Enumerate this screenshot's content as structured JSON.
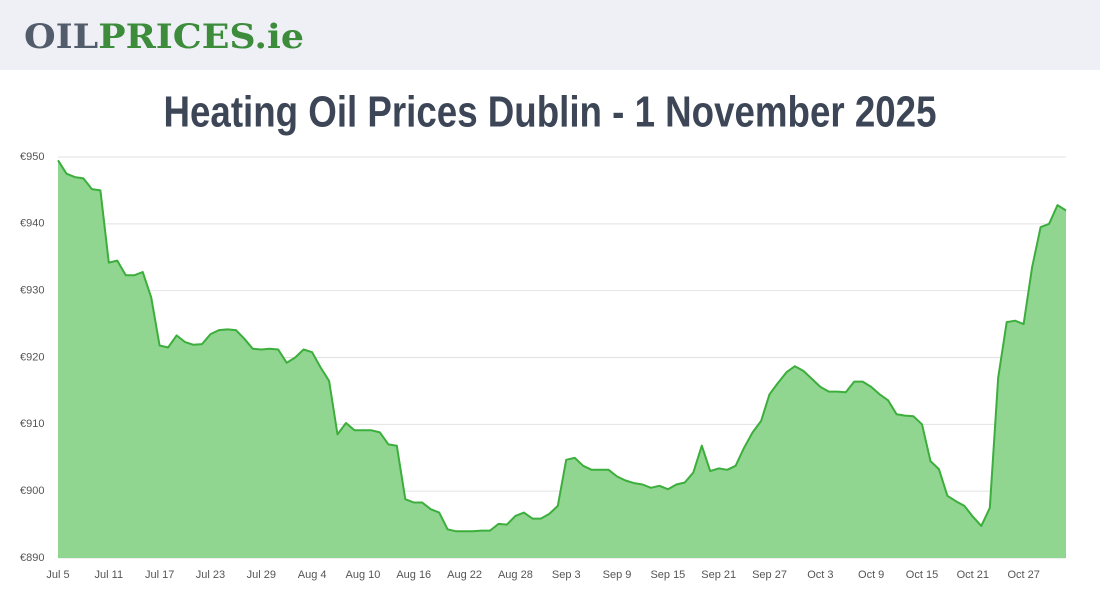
{
  "header": {
    "logo_parts": [
      "OIL",
      "PRICES",
      ".ie"
    ]
  },
  "chart_data": {
    "type": "area",
    "title": "Heating Oil Prices Dublin - 1 November 2025",
    "categories": [
      "Jul 5",
      null,
      null,
      null,
      null,
      null,
      "Jul 11",
      null,
      null,
      null,
      null,
      null,
      "Jul 17",
      null,
      null,
      null,
      null,
      null,
      "Jul 23",
      null,
      null,
      null,
      null,
      null,
      "Jul 29",
      null,
      null,
      null,
      null,
      null,
      "Aug 4",
      null,
      null,
      null,
      null,
      null,
      "Aug 10",
      null,
      null,
      null,
      null,
      null,
      "Aug 16",
      null,
      null,
      null,
      null,
      null,
      "Aug 22",
      null,
      null,
      null,
      null,
      null,
      "Aug 28",
      null,
      null,
      null,
      null,
      null,
      "Sep 3",
      null,
      null,
      null,
      null,
      null,
      "Sep 9",
      null,
      null,
      null,
      null,
      null,
      "Sep 15",
      null,
      null,
      null,
      null,
      null,
      "Sep 21",
      null,
      null,
      null,
      null,
      null,
      "Sep 27",
      null,
      null,
      null,
      null,
      null,
      "Oct 3",
      null,
      null,
      null,
      null,
      null,
      "Oct 9",
      null,
      null,
      null,
      null,
      null,
      "Oct 15",
      null,
      null,
      null,
      null,
      null,
      "Oct 21",
      null,
      null,
      null,
      null,
      null,
      "Oct 27",
      null,
      null,
      null,
      null,
      null
    ],
    "values": [
      949.5,
      947.5,
      947,
      946.8,
      945.2,
      945,
      934.2,
      934.5,
      932.3,
      932.3,
      932.8,
      929,
      921.8,
      921.5,
      923.3,
      922.3,
      921.9,
      922,
      923.5,
      924.1,
      924.2,
      924.1,
      922.8,
      921.3,
      921.2,
      921.3,
      921.2,
      919.2,
      920,
      921.2,
      920.8,
      918.5,
      916.5,
      908.5,
      910.2,
      909.1,
      909.1,
      909.1,
      908.8,
      907,
      906.8,
      898.8,
      898.3,
      898.3,
      897.3,
      896.8,
      894.3,
      894,
      894,
      894,
      894.1,
      894.1,
      895.1,
      895,
      896.3,
      896.8,
      895.9,
      895.9,
      896.6,
      897.8,
      904.7,
      905,
      903.8,
      903.2,
      903.2,
      903.2,
      902.2,
      901.6,
      901.2,
      901,
      900.5,
      900.8,
      900.3,
      901,
      901.3,
      902.8,
      906.8,
      903,
      903.4,
      903.2,
      903.8,
      906.5,
      908.8,
      910.5,
      914.5,
      916.2,
      917.8,
      918.7,
      918,
      916.8,
      915.6,
      914.9,
      914.9,
      914.8,
      916.4,
      916.4,
      915.6,
      914.5,
      913.6,
      911.5,
      911.3,
      911.2,
      910,
      904.5,
      903.3,
      899.3,
      898.5,
      897.8,
      896.2,
      894.8,
      897.5,
      917,
      925.3,
      925.5,
      925,
      933.5,
      939.5,
      940,
      942.8,
      942
    ],
    "color": "#3cae3c",
    "fill": "#90d690",
    "ylim": [
      890,
      950
    ],
    "yticks": [
      {
        "value": 890,
        "label": "€890"
      },
      {
        "value": 900,
        "label": "€900"
      },
      {
        "value": 910,
        "label": "€910"
      },
      {
        "value": 920,
        "label": "€920"
      },
      {
        "value": 930,
        "label": "€930"
      },
      {
        "value": 940,
        "label": "€940"
      },
      {
        "value": 950,
        "label": "€950"
      }
    ],
    "grid": true
  }
}
